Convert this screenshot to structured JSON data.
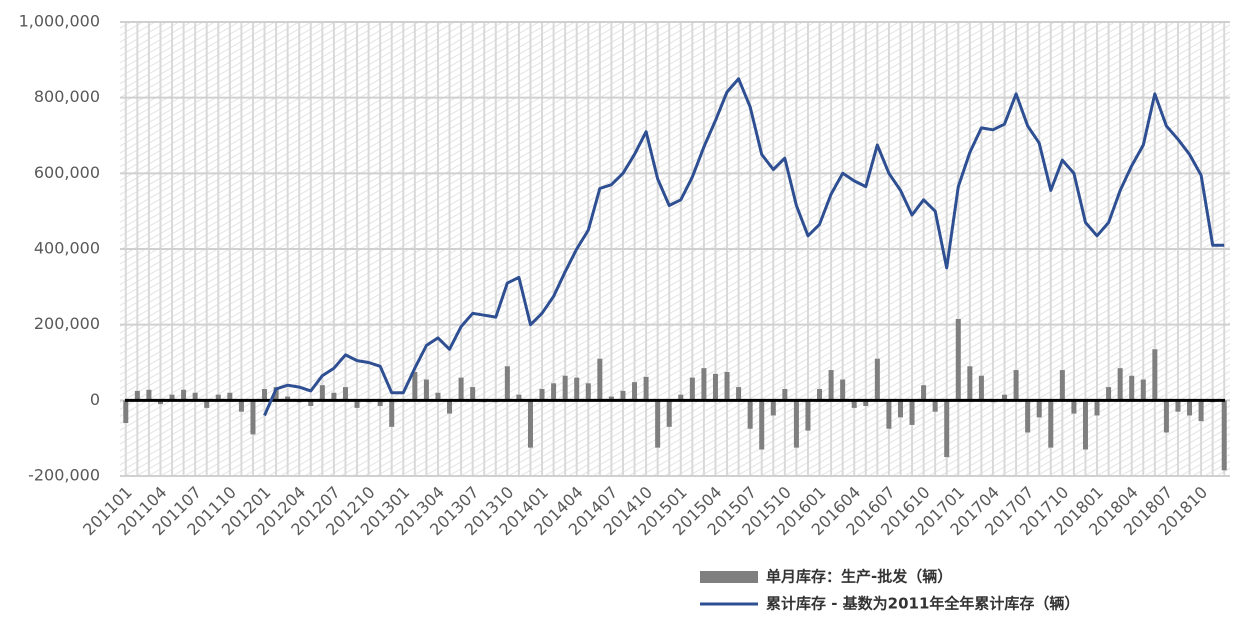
{
  "chart_data": {
    "type": "bar-line",
    "categories": [
      "201101",
      null,
      null,
      "201104",
      null,
      null,
      "201107",
      null,
      null,
      "201110",
      null,
      null,
      "201201",
      null,
      null,
      "201204",
      null,
      null,
      "201207",
      null,
      null,
      "201210",
      null,
      null,
      "201301",
      null,
      null,
      "201304",
      null,
      null,
      "201307",
      null,
      null,
      "201310",
      null,
      null,
      "201401",
      null,
      null,
      "201404",
      null,
      null,
      "201407",
      null,
      null,
      "201410",
      null,
      null,
      "201501",
      null,
      null,
      "201504",
      null,
      null,
      "201507",
      null,
      null,
      "201510",
      null,
      null,
      "201601",
      null,
      null,
      "201604",
      null,
      null,
      "201607",
      null,
      null,
      "201610",
      null,
      null,
      "201701",
      null,
      null,
      "201704",
      null,
      null,
      "201707",
      null,
      null,
      "201710",
      null,
      null,
      "201801",
      null,
      null,
      "201804",
      null,
      null,
      "201807",
      null,
      null,
      "201810",
      null,
      null
    ],
    "series": [
      {
        "name": "单月库存：生产-批发（辆）",
        "color": "#7f7f7f",
        "kind": "bar",
        "values": [
          -60000,
          25000,
          28000,
          -10000,
          15000,
          28000,
          20000,
          -20000,
          15000,
          20000,
          -30000,
          -90000,
          30000,
          35000,
          10000,
          -5000,
          -15000,
          40000,
          20000,
          35000,
          -20000,
          -5000,
          -15000,
          -70000,
          0,
          75000,
          55000,
          20000,
          -35000,
          60000,
          35000,
          -5000,
          -5000,
          90000,
          15000,
          -125000,
          30000,
          45000,
          65000,
          60000,
          45000,
          110000,
          10000,
          25000,
          48000,
          62000,
          -125000,
          -70000,
          15000,
          60000,
          85000,
          70000,
          75000,
          35000,
          -75000,
          -130000,
          -40000,
          30000,
          -125000,
          -80000,
          30000,
          80000,
          55000,
          -20000,
          -15000,
          110000,
          -75000,
          -45000,
          -65000,
          40000,
          -30000,
          -150000,
          215000,
          90000,
          65000,
          -5000,
          15000,
          80000,
          -85000,
          -45000,
          -125000,
          80000,
          -35000,
          -130000,
          -40000,
          35000,
          85000,
          65000,
          55000,
          135000,
          -85000,
          -30000,
          -40000,
          -55000,
          -5000,
          -185000
        ]
      },
      {
        "name": "累计库存 - 基数为2011年全年累计库存（辆）",
        "color": "#2f4f93",
        "kind": "line",
        "values": [
          null,
          null,
          null,
          null,
          null,
          null,
          null,
          null,
          null,
          null,
          null,
          null,
          -40000,
          30000,
          40000,
          35000,
          25000,
          65000,
          85000,
          120000,
          105000,
          100000,
          90000,
          20000,
          20000,
          85000,
          145000,
          165000,
          135000,
          195000,
          230000,
          225000,
          220000,
          310000,
          325000,
          200000,
          230000,
          275000,
          340000,
          400000,
          450000,
          560000,
          570000,
          600000,
          650000,
          710000,
          585000,
          515000,
          530000,
          590000,
          670000,
          740000,
          815000,
          850000,
          775000,
          650000,
          610000,
          640000,
          515000,
          435000,
          465000,
          545000,
          600000,
          580000,
          565000,
          675000,
          600000,
          555000,
          490000,
          530000,
          500000,
          350000,
          565000,
          655000,
          720000,
          715000,
          730000,
          810000,
          725000,
          680000,
          555000,
          635000,
          600000,
          470000,
          435000,
          470000,
          555000,
          620000,
          675000,
          810000,
          725000,
          690000,
          650000,
          595000,
          410000,
          410000
        ]
      }
    ],
    "ylim": [
      -200000,
      1000000
    ],
    "yticks": [
      {
        "value": -200000,
        "label": "-200,000"
      },
      0,
      {
        "value": 200000,
        "label": "200,000"
      },
      {
        "value": 400000,
        "label": "400,000"
      },
      {
        "value": 600000,
        "label": "600,000"
      },
      {
        "value": 800000,
        "label": "800,000"
      },
      {
        "value": 1000000,
        "label": "1,000,000"
      }
    ],
    "grid": true
  }
}
